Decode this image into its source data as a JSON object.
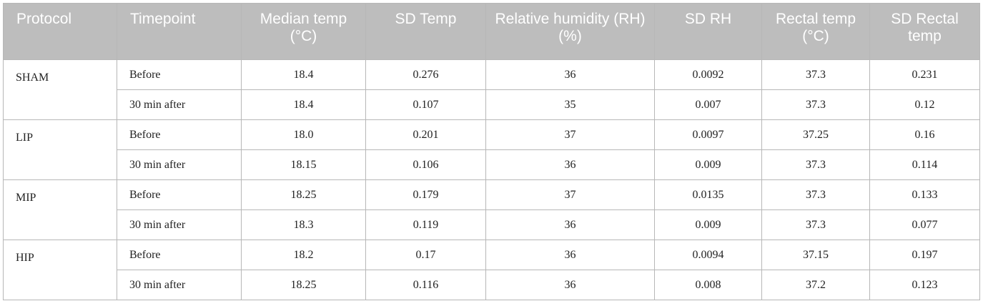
{
  "table": {
    "headers": [
      "Protocol",
      "Timepoint",
      "Median temp (°C)",
      "SD Temp",
      "Relative humidity (RH) (%)",
      "SD RH",
      "Rectal temp (°C)",
      "SD Rectal temp"
    ],
    "groups": [
      {
        "protocol": "SHAM",
        "rows": [
          {
            "timepoint": "Before",
            "values": [
              "18.4",
              "0.276",
              "36",
              "0.0092",
              "37.3",
              "0.231"
            ]
          },
          {
            "timepoint": "30 min after",
            "values": [
              "18.4",
              "0.107",
              "35",
              "0.007",
              "37.3",
              "0.12"
            ]
          }
        ]
      },
      {
        "protocol": "LIP",
        "rows": [
          {
            "timepoint": "Before",
            "values": [
              "18.0",
              "0.201",
              "37",
              "0.0097",
              "37.25",
              "0.16"
            ]
          },
          {
            "timepoint": "30 min after",
            "values": [
              "18.15",
              "0.106",
              "36",
              "0.009",
              "37.3",
              "0.114"
            ]
          }
        ]
      },
      {
        "protocol": "MIP",
        "rows": [
          {
            "timepoint": "Before",
            "values": [
              "18.25",
              "0.179",
              "37",
              "0.0135",
              "37.3",
              "0.133"
            ]
          },
          {
            "timepoint": "30 min after",
            "values": [
              "18.3",
              "0.119",
              "36",
              "0.009",
              "37.3",
              "0.077"
            ]
          }
        ]
      },
      {
        "protocol": "HIP",
        "rows": [
          {
            "timepoint": "Before",
            "values": [
              "18.2",
              "0.17",
              "36",
              "0.0094",
              "37.15",
              "0.197"
            ]
          },
          {
            "timepoint": "30 min after",
            "values": [
              "18.25",
              "0.116",
              "36",
              "0.008",
              "37.2",
              "0.123"
            ]
          }
        ]
      }
    ]
  }
}
